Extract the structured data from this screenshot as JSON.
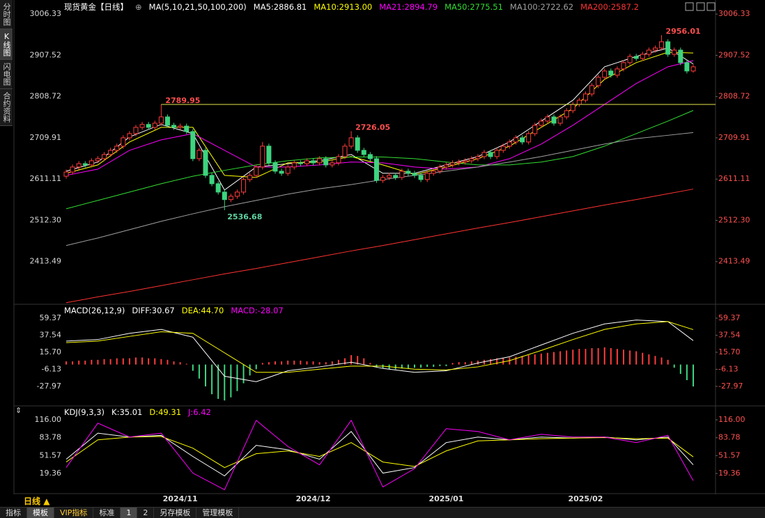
{
  "chart_data": [
    {
      "type": "candlestick",
      "title": "现货黄金【日线】",
      "legend_title": "MA(5,10,21,50,100,200)",
      "categories": [
        null,
        null,
        null,
        null,
        null,
        null,
        null,
        null,
        null,
        null,
        null,
        null,
        null,
        null,
        null,
        null,
        null,
        null,
        "2024/11",
        null,
        null,
        null,
        null,
        null,
        null,
        null,
        null,
        null,
        null,
        null,
        null,
        null,
        null,
        null,
        null,
        null,
        null,
        null,
        null,
        "2024/12",
        null,
        null,
        null,
        null,
        null,
        null,
        null,
        null,
        null,
        null,
        null,
        null,
        null,
        null,
        null,
        null,
        null,
        null,
        null,
        null,
        "2025/01",
        null,
        null,
        null,
        null,
        null,
        null,
        null,
        null,
        null,
        null,
        null,
        null,
        null,
        null,
        null,
        null,
        null,
        null,
        null,
        null,
        null,
        "2025/02",
        null,
        null,
        null,
        null,
        null,
        null,
        null,
        null,
        null,
        null,
        null,
        null,
        null,
        null,
        null,
        null,
        null
      ],
      "open": [
        2618,
        2628,
        2640,
        2648,
        2645,
        2655,
        2660,
        2670,
        2680,
        2690,
        2710,
        2720,
        2735,
        2742,
        2735,
        2745,
        2760,
        2740,
        2735,
        2738,
        2725,
        2660,
        2680,
        2620,
        2600,
        2580,
        2562,
        2570,
        2580,
        2610,
        2620,
        2640,
        2690,
        2650,
        2630,
        2625,
        2640,
        2650,
        2648,
        2655,
        2650,
        2660,
        2645,
        2650,
        2665,
        2690,
        2710,
        2680,
        2670,
        2660,
        2608,
        2615,
        2620,
        2615,
        2630,
        2625,
        2620,
        2610,
        2625,
        2630,
        2640,
        2645,
        2650,
        2652,
        2655,
        2660,
        2665,
        2675,
        2665,
        2680,
        2690,
        2700,
        2710,
        2700,
        2720,
        2740,
        2750,
        2760,
        2745,
        2760,
        2775,
        2790,
        2800,
        2815,
        2835,
        2855,
        2870,
        2860,
        2875,
        2890,
        2905,
        2900,
        2910,
        2920,
        2925,
        2940,
        2910,
        2920,
        2890,
        2870
      ],
      "high": [
        2634,
        2646,
        2654,
        2654,
        2661,
        2666,
        2676,
        2686,
        2696,
        2716,
        2726,
        2741,
        2748,
        2748,
        2751,
        2789.95,
        2766,
        2746,
        2744,
        2744,
        2731,
        2686,
        2686,
        2626,
        2606,
        2586,
        2576,
        2586,
        2616,
        2626,
        2646,
        2700,
        2696,
        2656,
        2636,
        2646,
        2656,
        2656,
        2661,
        2661,
        2666,
        2666,
        2656,
        2671,
        2696,
        2726.05,
        2716,
        2686,
        2676,
        2666,
        2621,
        2626,
        2626,
        2636,
        2636,
        2631,
        2626,
        2631,
        2636,
        2646,
        2651,
        2656,
        2658,
        2661,
        2666,
        2671,
        2681,
        2681,
        2686,
        2696,
        2706,
        2716,
        2716,
        2726,
        2746,
        2756,
        2766,
        2766,
        2766,
        2781,
        2796,
        2806,
        2821,
        2841,
        2861,
        2876,
        2876,
        2881,
        2896,
        2911,
        2911,
        2916,
        2926,
        2931,
        2956.01,
        2946,
        2926,
        2926,
        2896,
        2886
      ],
      "low": [
        2612,
        2622,
        2634,
        2639,
        2639,
        2649,
        2654,
        2664,
        2674,
        2684,
        2704,
        2714,
        2729,
        2729,
        2729,
        2739,
        2734,
        2729,
        2729,
        2719,
        2654,
        2654,
        2614,
        2594,
        2574,
        2536.68,
        2556,
        2564,
        2574,
        2604,
        2614,
        2634,
        2644,
        2624,
        2619,
        2619,
        2634,
        2642,
        2642,
        2644,
        2644,
        2639,
        2639,
        2644,
        2659,
        2684,
        2674,
        2664,
        2654,
        2602,
        2602,
        2609,
        2609,
        2609,
        2619,
        2614,
        2604,
        2604,
        2619,
        2624,
        2634,
        2639,
        2644,
        2646,
        2649,
        2654,
        2659,
        2659,
        2659,
        2674,
        2684,
        2694,
        2694,
        2694,
        2714,
        2734,
        2744,
        2739,
        2739,
        2754,
        2769,
        2784,
        2794,
        2809,
        2829,
        2849,
        2854,
        2854,
        2869,
        2884,
        2894,
        2894,
        2904,
        2914,
        2919,
        2904,
        2904,
        2884,
        2864,
        2866
      ],
      "close": [
        2628,
        2640,
        2648,
        2645,
        2655,
        2660,
        2670,
        2680,
        2690,
        2710,
        2720,
        2735,
        2742,
        2735,
        2745,
        2760,
        2740,
        2735,
        2738,
        2725,
        2660,
        2680,
        2620,
        2600,
        2580,
        2562,
        2570,
        2580,
        2610,
        2620,
        2640,
        2690,
        2650,
        2630,
        2625,
        2640,
        2650,
        2648,
        2655,
        2650,
        2660,
        2645,
        2650,
        2665,
        2690,
        2710,
        2680,
        2670,
        2660,
        2608,
        2615,
        2620,
        2615,
        2630,
        2625,
        2620,
        2610,
        2625,
        2630,
        2640,
        2645,
        2650,
        2652,
        2655,
        2660,
        2665,
        2675,
        2665,
        2680,
        2690,
        2700,
        2710,
        2700,
        2720,
        2740,
        2750,
        2760,
        2745,
        2760,
        2775,
        2790,
        2800,
        2815,
        2835,
        2855,
        2870,
        2860,
        2875,
        2890,
        2905,
        2900,
        2910,
        2920,
        2925,
        2940,
        2910,
        2920,
        2890,
        2870,
        2880
      ],
      "up_color": "#ff3c3c",
      "down_color": "#3dd47f",
      "series": [
        {
          "name": "MA5:2886.81",
          "color": "#ffffff",
          "x": [
            0,
            5,
            10,
            15,
            20,
            25,
            30,
            35,
            40,
            45,
            50,
            55,
            60,
            65,
            70,
            75,
            80,
            85,
            90,
            95,
            99
          ],
          "values": [
            2630,
            2652,
            2712,
            2742,
            2720,
            2585,
            2640,
            2648,
            2655,
            2670,
            2625,
            2625,
            2645,
            2665,
            2700,
            2750,
            2800,
            2880,
            2905,
            2925,
            2886.81
          ]
        },
        {
          "name": "MA10:2913.00",
          "color": "#ffff00",
          "x": [
            0,
            5,
            10,
            15,
            20,
            25,
            30,
            35,
            40,
            45,
            50,
            55,
            60,
            65,
            70,
            75,
            80,
            85,
            90,
            95,
            99
          ],
          "values": [
            2625,
            2645,
            2700,
            2735,
            2735,
            2620,
            2615,
            2650,
            2652,
            2665,
            2645,
            2622,
            2640,
            2660,
            2690,
            2735,
            2780,
            2850,
            2890,
            2915,
            2913
          ]
        },
        {
          "name": "MA21:2894.79",
          "color": "#ff00ff",
          "x": [
            0,
            5,
            10,
            15,
            20,
            25,
            30,
            35,
            40,
            45,
            50,
            55,
            60,
            65,
            70,
            75,
            80,
            85,
            90,
            95,
            99
          ],
          "values": [
            2620,
            2635,
            2680,
            2705,
            2720,
            2680,
            2640,
            2640,
            2645,
            2652,
            2650,
            2640,
            2635,
            2640,
            2660,
            2695,
            2740,
            2790,
            2840,
            2880,
            2894.79
          ]
        },
        {
          "name": "MA50:2775.51",
          "color": "#33dd33",
          "x": [
            0,
            5,
            10,
            15,
            20,
            25,
            30,
            35,
            40,
            45,
            50,
            55,
            60,
            65,
            70,
            75,
            80,
            85,
            90,
            95,
            99
          ],
          "values": [
            2540,
            2560,
            2580,
            2600,
            2618,
            2632,
            2645,
            2655,
            2662,
            2664,
            2664,
            2660,
            2652,
            2645,
            2645,
            2652,
            2665,
            2690,
            2720,
            2750,
            2775.51
          ]
        },
        {
          "name": "MA100:2722.62",
          "color": "#a0a0a0",
          "x": [
            0,
            5,
            10,
            15,
            20,
            25,
            30,
            35,
            40,
            45,
            50,
            55,
            60,
            65,
            70,
            75,
            80,
            85,
            90,
            95,
            99
          ],
          "values": [
            2452,
            2470,
            2490,
            2510,
            2528,
            2545,
            2560,
            2575,
            2588,
            2598,
            2610,
            2620,
            2630,
            2640,
            2652,
            2665,
            2680,
            2695,
            2708,
            2716,
            2722.62
          ]
        },
        {
          "name": "MA200:2587.2",
          "color": "#ff3232",
          "x": [
            0,
            5,
            10,
            15,
            20,
            25,
            30,
            35,
            40,
            45,
            50,
            55,
            60,
            65,
            70,
            75,
            80,
            85,
            90,
            95,
            99
          ],
          "values": [
            2315,
            2329,
            2342,
            2356,
            2370,
            2384,
            2397,
            2411,
            2425,
            2439,
            2452,
            2466,
            2480,
            2494,
            2507,
            2521,
            2535,
            2549,
            2562,
            2576,
            2587.2
          ]
        }
      ],
      "ylim": [
        2313,
        3020
      ],
      "yticks": [
        3006.33,
        2907.52,
        2808.72,
        2709.91,
        2611.11,
        {
          "value": 2512.3,
          "label": "2512.30"
        },
        2413.49
      ]
    },
    {
      "type": "macd",
      "title": "MACD(26,12,9)",
      "series": [
        {
          "name": "DIFF:30.67",
          "color": "#ffffff",
          "x": [
            0,
            5,
            10,
            15,
            20,
            25,
            30,
            35,
            40,
            45,
            50,
            55,
            60,
            65,
            70,
            75,
            80,
            85,
            90,
            95,
            99
          ],
          "values": [
            30,
            32,
            40,
            45,
            35,
            -15,
            -22,
            -8,
            -3,
            3,
            -5,
            -10,
            -8,
            2,
            10,
            25,
            40,
            52,
            57,
            55,
            30.67
          ]
        },
        {
          "name": "DEA:44.70",
          "color": "#ffff00",
          "x": [
            0,
            5,
            10,
            15,
            20,
            25,
            30,
            35,
            40,
            45,
            50,
            55,
            60,
            65,
            70,
            75,
            80,
            85,
            90,
            95,
            99
          ],
          "values": [
            28,
            30,
            36,
            42,
            40,
            15,
            -10,
            -10,
            -6,
            -2,
            -2,
            -6,
            -7,
            -3,
            5,
            18,
            32,
            45,
            52,
            55,
            44.7
          ]
        }
      ],
      "bars": {
        "name": "MACD:-28.07",
        "color": "#ff00ff",
        "up_color": "#ff3c3c",
        "down_color": "#3dd47f",
        "values": [
          4,
          4,
          5,
          5,
          6,
          6,
          7,
          7,
          8,
          8,
          8,
          9,
          9,
          8,
          8,
          7,
          6,
          4,
          3,
          1,
          -8,
          -18,
          -28,
          -38,
          -44,
          -46,
          -42,
          -34,
          -24,
          -14,
          -6,
          2,
          3,
          4,
          4,
          5,
          5,
          5,
          4,
          4,
          3,
          3,
          4,
          6,
          8,
          12,
          11,
          8,
          2,
          -3,
          -5,
          -6,
          -6,
          -5,
          -5,
          -4,
          -4,
          -3,
          -3,
          -2,
          -2,
          2,
          3,
          3,
          4,
          5,
          6,
          7,
          8,
          8,
          9,
          10,
          11,
          12,
          13,
          14,
          15,
          16,
          17,
          18,
          19,
          20,
          20,
          21,
          21,
          22,
          21,
          20,
          19,
          18,
          17,
          15,
          13,
          11,
          9,
          6,
          -4,
          -12,
          -20,
          -28.07
        ]
      },
      "ylim": [
        -50.3,
        74.5
      ],
      "yticks": [
        59.37,
        37.54,
        {
          "value": 15.7,
          "label": "15.70"
        },
        -6.13,
        -27.97
      ]
    },
    {
      "type": "line",
      "title": "KDJ(9,3,3)",
      "series": [
        {
          "name": "K:35.01",
          "color": "#ffffff",
          "x": [
            0,
            5,
            10,
            15,
            20,
            25,
            30,
            35,
            40,
            45,
            50,
            55,
            60,
            65,
            70,
            75,
            80,
            85,
            90,
            95,
            99
          ],
          "values": [
            45,
            92,
            85,
            88,
            50,
            15,
            70,
            62,
            45,
            95,
            20,
            30,
            75,
            85,
            80,
            85,
            83,
            85,
            80,
            85,
            35.01
          ]
        },
        {
          "name": "D:49.31",
          "color": "#ffff00",
          "x": [
            0,
            5,
            10,
            15,
            20,
            25,
            30,
            35,
            40,
            45,
            50,
            55,
            60,
            65,
            70,
            75,
            80,
            85,
            90,
            95,
            99
          ],
          "values": [
            40,
            80,
            85,
            86,
            65,
            30,
            55,
            60,
            50,
            75,
            40,
            32,
            60,
            78,
            80,
            82,
            83,
            84,
            82,
            83,
            49.31
          ]
        },
        {
          "name": "J:6.42",
          "color": "#ff00ff",
          "x": [
            0,
            5,
            10,
            15,
            20,
            25,
            30,
            35,
            40,
            45,
            50,
            55,
            60,
            65,
            70,
            75,
            80,
            85,
            90,
            95,
            99
          ],
          "values": [
            30,
            110,
            85,
            92,
            20,
            -10,
            115,
            68,
            35,
            115,
            -5,
            28,
            100,
            95,
            80,
            90,
            85,
            85,
            75,
            88,
            6.42
          ]
        }
      ],
      "ylim": [
        -15.7,
        132.3
      ],
      "yticks": [
        {
          "value": 116,
          "label": "116.00"
        },
        83.78,
        51.57,
        19.36
      ]
    }
  ],
  "ui": {
    "sidebar": [
      "分时图",
      "K线图",
      "闪电图",
      "合约资料"
    ],
    "sidebar_selected": 1,
    "period": "日线",
    "toolbar": [
      "指标",
      "模板",
      "VIP指标",
      "标准",
      "1",
      "2",
      "另存模板",
      "管理模板"
    ],
    "toolbar_selected": [
      1,
      4
    ]
  }
}
